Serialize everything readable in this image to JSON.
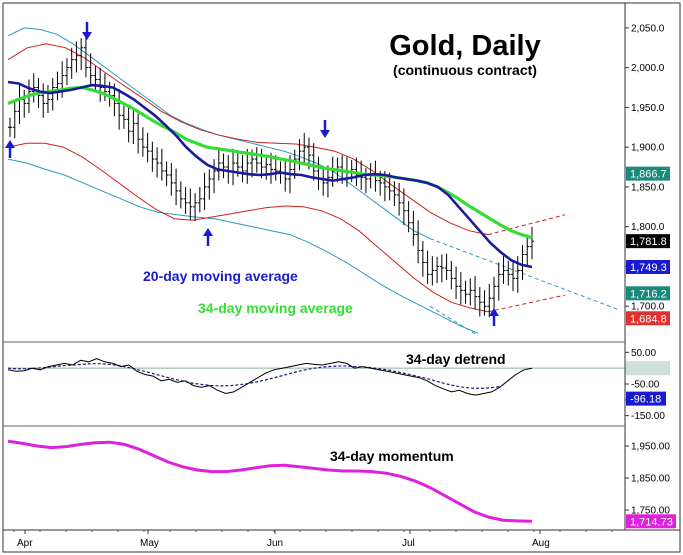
{
  "chart_data": [
    {
      "type": "line",
      "title": "Gold, Daily",
      "subtitle": "(continuous contract)",
      "x_tick_labels": [
        "Apr",
        "May",
        "Jun",
        "Jul",
        "Aug"
      ],
      "y_tick_labels": [
        "2,050.0",
        "2,000.0",
        "1,950.0",
        "1,900.0",
        "1,850.0",
        "1,800.0",
        "1,750.0",
        "1,700.0"
      ],
      "ylim": [
        1660,
        2075
      ],
      "y_ticks": [
        2050,
        2000,
        1950,
        1900,
        1850,
        1800,
        1750,
        1700
      ],
      "price_labels": [
        {
          "text": "1,866.7",
          "value": 1866.7,
          "color": "#1a8a7a"
        },
        {
          "text": "1,781.8",
          "value": 1781.8,
          "color": "#000000"
        },
        {
          "text": "1,749.3",
          "value": 1749.3,
          "color": "#1a1ad0"
        },
        {
          "text": "1,716.2",
          "value": 1716.2,
          "color": "#1a8a7a"
        },
        {
          "text": "1,684.8",
          "value": 1684.8,
          "color": "#e03030"
        }
      ],
      "legend_20": "20-day moving average",
      "legend_34": "34-day moving average",
      "colors": {
        "price": "#000000",
        "ma20": "#1a1aa0",
        "ma34": "#33dd33",
        "band_outer": "#2a9ac0",
        "band_inner": "#d02020"
      },
      "x_days": [
        0,
        1,
        2,
        3,
        4,
        5,
        6,
        7,
        8,
        9,
        10,
        11,
        12,
        13,
        14,
        15,
        16,
        17,
        18,
        19,
        20,
        21,
        22,
        23,
        24,
        25,
        26,
        27,
        28,
        29,
        30,
        31,
        32,
        33,
        34,
        35,
        36,
        37,
        38,
        39,
        40,
        41,
        42,
        43,
        44,
        45,
        46,
        47,
        48,
        49,
        50,
        51,
        52,
        53,
        54,
        55,
        56,
        57,
        58,
        59,
        60,
        61,
        62,
        63,
        64,
        65,
        66,
        67,
        68,
        69,
        70,
        71,
        72,
        73,
        74,
        75,
        76,
        77,
        78,
        79,
        80,
        81,
        82,
        83,
        84,
        85,
        86,
        87,
        88,
        89,
        90,
        91,
        92,
        93,
        94,
        95,
        96,
        97,
        98,
        99,
        100,
        101,
        102,
        103,
        104,
        105,
        106,
        107,
        108,
        109,
        110,
        111,
        112,
        113,
        114,
        115,
        116,
        117,
        118,
        119,
        120,
        121,
        122,
        123
      ],
      "price_close": [
        1925,
        1945,
        1960,
        1955,
        1970,
        1975,
        1965,
        1955,
        1960,
        1975,
        1980,
        1990,
        2000,
        2010,
        2015,
        2025,
        2000,
        1990,
        1985,
        1975,
        1970,
        1965,
        1955,
        1940,
        1935,
        1920,
        1930,
        1910,
        1900,
        1895,
        1885,
        1880,
        1870,
        1865,
        1855,
        1845,
        1835,
        1830,
        1825,
        1830,
        1835,
        1850,
        1860,
        1870,
        1880,
        1875,
        1870,
        1880,
        1875,
        1870,
        1880,
        1885,
        1880,
        1875,
        1878,
        1872,
        1870,
        1868,
        1860,
        1872,
        1885,
        1895,
        1900,
        1890,
        1870,
        1860,
        1855,
        1862,
        1870,
        1875,
        1870,
        1868,
        1872,
        1865,
        1862,
        1860,
        1865,
        1858,
        1855,
        1850,
        1845,
        1840,
        1830,
        1820,
        1805,
        1790,
        1770,
        1755,
        1740,
        1745,
        1750,
        1748,
        1745,
        1735,
        1725,
        1720,
        1715,
        1720,
        1712,
        1705,
        1700,
        1710,
        1725,
        1740,
        1745,
        1740,
        1735,
        1745,
        1765,
        1775,
        1781.8
      ],
      "ma20": [
        1982,
        1980,
        1974,
        1970,
        1968,
        1970,
        1972,
        1975,
        1978,
        1977,
        1975,
        1968,
        1960,
        1950,
        1940,
        1928,
        1915,
        1900,
        1888,
        1878,
        1872,
        1870,
        1868,
        1866,
        1865,
        1866,
        1868,
        1866,
        1865,
        1862,
        1860,
        1858,
        1860,
        1862,
        1865,
        1866,
        1865,
        1862,
        1860,
        1858,
        1855,
        1850,
        1840,
        1825,
        1810,
        1795,
        1780,
        1768,
        1758,
        1752,
        1749.3
      ],
      "ma34": [
        1955,
        1960,
        1965,
        1968,
        1970,
        1972,
        1974,
        1975,
        1972,
        1968,
        1962,
        1955,
        1948,
        1940,
        1932,
        1925,
        1918,
        1910,
        1905,
        1900,
        1898,
        1896,
        1894,
        1892,
        1890,
        1888,
        1885,
        1883,
        1880,
        1877,
        1874,
        1872,
        1870,
        1868,
        1866,
        1865,
        1864,
        1862,
        1860,
        1858,
        1855,
        1850,
        1843,
        1835,
        1826,
        1818,
        1810,
        1802,
        1795,
        1790,
        1786
      ],
      "band_outer_upper": [
        2040,
        2050,
        2048,
        2042,
        2030,
        2015,
        2000,
        1985,
        1970,
        1955,
        1940,
        1930,
        1922,
        1915,
        1910,
        1905,
        1900,
        1895,
        1888,
        1880,
        1870,
        1855,
        1840,
        1825,
        1810,
        1795,
        1785
      ],
      "band_outer_lower": [
        1885,
        1880,
        1872,
        1865,
        1855,
        1845,
        1835,
        1825,
        1818,
        1815,
        1812,
        1810,
        1805,
        1800,
        1795,
        1790,
        1780,
        1768,
        1755,
        1740,
        1725,
        1712,
        1700,
        1688,
        1676,
        1666
      ],
      "band_inner_upper": [
        2010,
        2025,
        2030,
        2025,
        2012,
        1995,
        1978,
        1962,
        1945,
        1932,
        1922,
        1915,
        1910,
        1906,
        1905,
        1904,
        1900,
        1895,
        1885,
        1870,
        1852,
        1835,
        1818,
        1805,
        1795,
        1790
      ],
      "band_inner_lower": [
        1900,
        1905,
        1905,
        1900,
        1888,
        1872,
        1855,
        1838,
        1822,
        1810,
        1808,
        1812,
        1816,
        1820,
        1824,
        1826,
        1825,
        1820,
        1810,
        1795,
        1775,
        1755,
        1735,
        1718,
        1705,
        1698,
        1693
      ]
    },
    {
      "type": "line",
      "title": "34-day detrend",
      "y_tick_labels": [
        "50.00",
        "0.00",
        "-50.00",
        "-100.00",
        "-150.00"
      ],
      "ylim": [
        -170,
        70
      ],
      "y_ticks": [
        50,
        0,
        -50,
        -100,
        -150
      ],
      "price_labels": [
        {
          "text": "-96.18",
          "value": -96.18,
          "color": "#1a1ad0"
        }
      ],
      "values": [
        -5,
        -10,
        -8,
        0,
        -5,
        5,
        10,
        15,
        10,
        25,
        20,
        30,
        20,
        15,
        5,
        10,
        -10,
        -20,
        -25,
        -40,
        -35,
        -45,
        -40,
        -55,
        -60,
        -55,
        -70,
        -80,
        -75,
        -60,
        -45,
        -30,
        -15,
        -5,
        0,
        5,
        10,
        15,
        12,
        10,
        15,
        20,
        15,
        0,
        5,
        0,
        -5,
        -10,
        -15,
        -20,
        -25,
        -30,
        -40,
        -55,
        -65,
        -75,
        -70,
        -80,
        -85,
        -80,
        -75,
        -60,
        -40,
        -20,
        -5,
        0
      ],
      "smooth": [
        0,
        -2,
        -2,
        0,
        2,
        5,
        8,
        10,
        12,
        14,
        14,
        12,
        8,
        2,
        -5,
        -12,
        -20,
        -28,
        -35,
        -42,
        -48,
        -52,
        -55,
        -56,
        -55,
        -52,
        -48,
        -42,
        -35,
        -28,
        -20,
        -12,
        -5,
        0,
        4,
        6,
        7,
        6,
        4,
        2,
        -2,
        -6,
        -12,
        -18,
        -25,
        -32,
        -40,
        -48,
        -55,
        -60,
        -63,
        -64,
        -62,
        -58
      ],
      "colors": {
        "line": "#000000",
        "smooth": "#1a1a80",
        "zero": "#8ab0a0"
      }
    },
    {
      "type": "line",
      "title": "34-day momentum",
      "y_tick_labels": [
        "1,950.00",
        "1,850.00",
        "1,750.00"
      ],
      "ylim": [
        1700,
        2000
      ],
      "y_ticks": [
        1950,
        1850,
        1750
      ],
      "price_labels": [
        {
          "text": "1,714.73",
          "value": 1714.73,
          "color": "#dd22dd"
        }
      ],
      "values": [
        1965,
        1958,
        1950,
        1945,
        1948,
        1955,
        1960,
        1962,
        1955,
        1940,
        1920,
        1900,
        1885,
        1875,
        1870,
        1870,
        1875,
        1882,
        1888,
        1890,
        1885,
        1880,
        1875,
        1872,
        1872,
        1870,
        1865,
        1855,
        1840,
        1820,
        1795,
        1770,
        1745,
        1728,
        1718,
        1716,
        1714.73
      ],
      "colors": {
        "line": "#dd22dd"
      }
    }
  ]
}
